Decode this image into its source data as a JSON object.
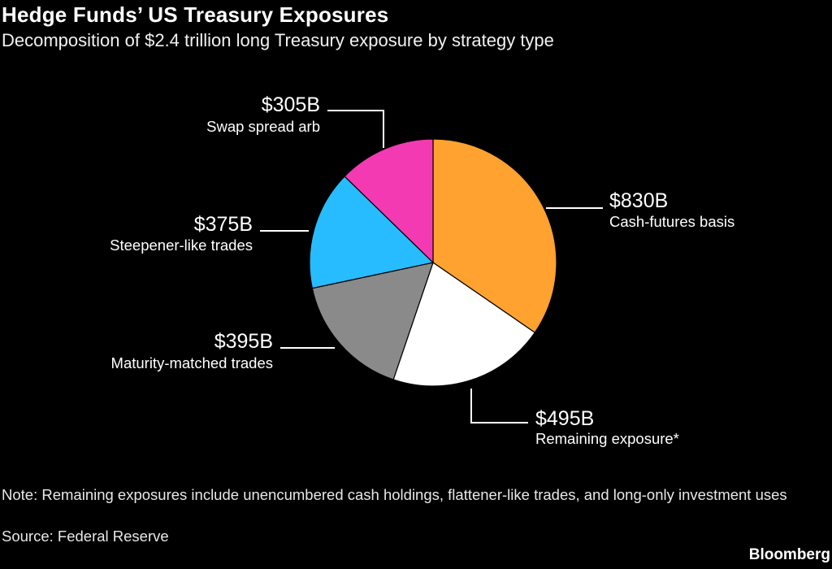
{
  "title": "Hedge Funds’ US Treasury Exposures",
  "subtitle": "Decomposition of $2.4 trillion long Treasury exposure by strategy type",
  "note": "Note: Remaining exposures include unencumbered cash holdings, flattener-like trades, and long-only investment uses",
  "source": "Source: Federal Reserve",
  "brand": "Bloomberg",
  "chart_data": {
    "type": "pie",
    "title": "Hedge Funds’ US Treasury Exposures",
    "subtitle": "Decomposition of $2.4 trillion long Treasury exposure by strategy type",
    "unit": "$B",
    "start": "12 o'clock",
    "direction": "clockwise",
    "slices": [
      {
        "label": "Cash-futures basis",
        "value": 830,
        "value_label": "$830B",
        "color": "#ffa22f"
      },
      {
        "label": "Remaining exposure*",
        "value": 495,
        "value_label": "$495B",
        "color": "#ffffff"
      },
      {
        "label": "Maturity-matched trades",
        "value": 395,
        "value_label": "$395B",
        "color": "#8a8a8a"
      },
      {
        "label": "Steepener-like trades",
        "value": 375,
        "value_label": "$375B",
        "color": "#27bcff"
      },
      {
        "label": "Swap spread arb",
        "value": 305,
        "value_label": "$305B",
        "color": "#f33ab2"
      }
    ]
  }
}
